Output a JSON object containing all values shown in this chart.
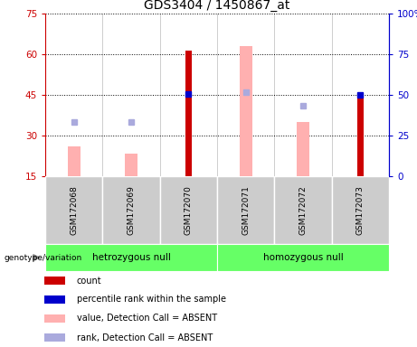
{
  "title": "GDS3404 / 1450867_at",
  "samples": [
    "GSM172068",
    "GSM172069",
    "GSM172070",
    "GSM172071",
    "GSM172072",
    "GSM172073"
  ],
  "groups": [
    "hetrozygous null",
    "homozygous null"
  ],
  "ylim_left": [
    15,
    75
  ],
  "ylim_right": [
    0,
    100
  ],
  "yticks_left": [
    15,
    30,
    45,
    60,
    75
  ],
  "yticks_right": [
    0,
    25,
    50,
    75,
    100
  ],
  "yticklabels_right": [
    "0",
    "25",
    "50",
    "75",
    "100%"
  ],
  "red_bars": {
    "heights": [
      null,
      null,
      61.5,
      null,
      null,
      44.5
    ],
    "base": 15
  },
  "pink_bars": {
    "heights": [
      26,
      23.5,
      null,
      63,
      35,
      null
    ],
    "base": 15
  },
  "blue_squares": {
    "positions": [
      null,
      null,
      45.5,
      null,
      null,
      45
    ]
  },
  "lavender_squares": {
    "positions": [
      35,
      35,
      null,
      46,
      41,
      null
    ]
  },
  "colors": {
    "red": "#CC0000",
    "pink": "#FFB0B0",
    "blue": "#0000CC",
    "lavender": "#AAAADD",
    "axis_left_color": "#CC0000",
    "axis_right_color": "#0000CC",
    "sample_box_bg": "#CCCCCC",
    "group_bg": "#66FF66",
    "plot_bg": "#FFFFFF"
  },
  "legend_items": [
    {
      "color": "#CC0000",
      "label": "count"
    },
    {
      "color": "#0000CC",
      "label": "percentile rank within the sample"
    },
    {
      "color": "#FFB0B0",
      "label": "value, Detection Call = ABSENT"
    },
    {
      "color": "#AAAADD",
      "label": "rank, Detection Call = ABSENT"
    }
  ]
}
